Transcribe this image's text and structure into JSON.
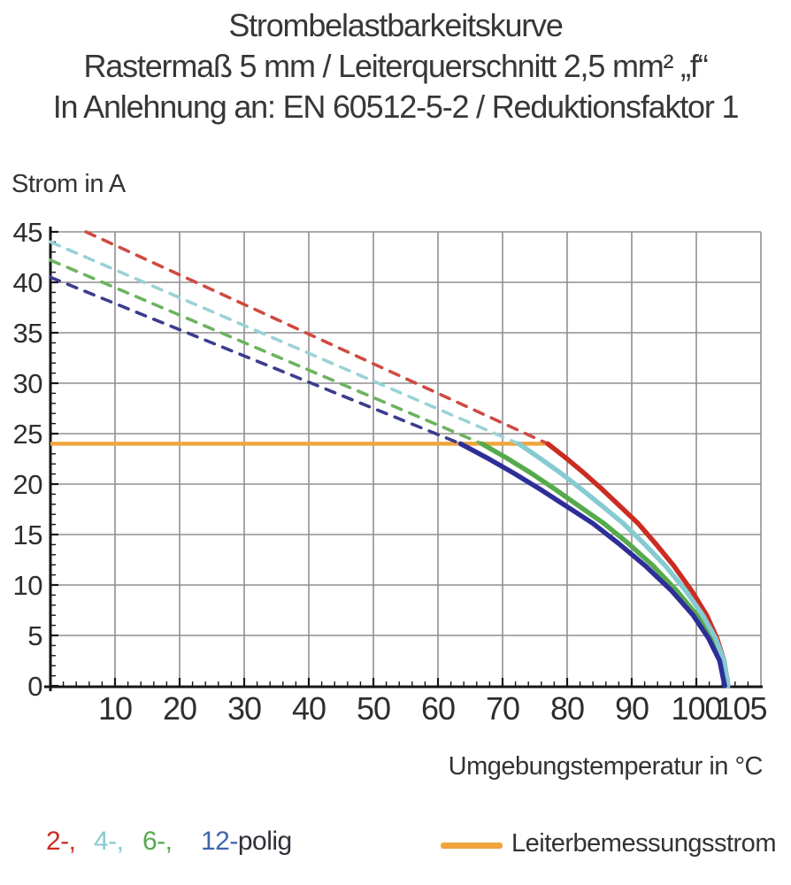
{
  "title": {
    "line1": "Strombelastbarkeitskurve",
    "line2": "Rastermaß 5 mm / Leiterquerschnitt 2,5 mm² „f“",
    "line3": "In Anlehnung an: EN 60512-5-2 / Reduktionsfaktor 1"
  },
  "chart_data": {
    "type": "line",
    "title": "Strombelastbarkeitskurve",
    "xlabel": "Umgebungstemperatur in °C",
    "ylabel": "Strom in A",
    "xlim": [
      0,
      110
    ],
    "ylim": [
      0,
      45
    ],
    "grid": true,
    "x_ticks_labeled": [
      10,
      20,
      30,
      40,
      50,
      60,
      70,
      80,
      90,
      100,
      105
    ],
    "y_ticks_labeled": [
      0,
      5,
      10,
      15,
      20,
      25,
      30,
      35,
      40,
      45
    ],
    "x_minor_tick_step": 2,
    "y_minor_tick_step": 1,
    "series": [
      {
        "name": "2-polig",
        "color": "#cb2c21",
        "dash_color": "#cf4b42",
        "dashed_segment": [
          [
            5.5,
            45
          ],
          [
            77,
            24
          ]
        ],
        "solid_curve": [
          [
            77,
            24
          ],
          [
            79.8,
            22.6
          ],
          [
            82.6,
            21.1
          ],
          [
            85.4,
            19.5
          ],
          [
            88.2,
            17.8
          ],
          [
            91,
            16.1
          ],
          [
            93.7,
            14.1
          ],
          [
            96.5,
            11.9
          ],
          [
            99.3,
            9.4
          ],
          [
            101.6,
            7
          ],
          [
            103.2,
            4.7
          ],
          [
            104.3,
            2.5
          ],
          [
            104.9,
            0
          ]
        ]
      },
      {
        "name": "6-polig",
        "color": "#56aa4c",
        "dash_color": "#6db360",
        "dashed_segment": [
          [
            0,
            42.2
          ],
          [
            66.8,
            24
          ]
        ],
        "solid_curve": [
          [
            66.8,
            24
          ],
          [
            70.6,
            22.6
          ],
          [
            74.4,
            21.1
          ],
          [
            78.1,
            19.5
          ],
          [
            81.9,
            17.8
          ],
          [
            85.7,
            16.1
          ],
          [
            89.5,
            14.1
          ],
          [
            93.3,
            11.9
          ],
          [
            97,
            9.4
          ],
          [
            100.1,
            7
          ],
          [
            102.3,
            4.7
          ],
          [
            103.8,
            2.5
          ],
          [
            104.6,
            0
          ]
        ]
      },
      {
        "name": "4-polig",
        "color": "#85cbd1",
        "dash_color": "#9bd2d6",
        "dashed_segment": [
          [
            0,
            44
          ],
          [
            72.5,
            24
          ]
        ],
        "solid_curve": [
          [
            72.5,
            24
          ],
          [
            75.7,
            22.6
          ],
          [
            79,
            21.1
          ],
          [
            82.2,
            19.5
          ],
          [
            85.5,
            17.8
          ],
          [
            88.7,
            16.1
          ],
          [
            91.9,
            14.1
          ],
          [
            95.2,
            11.9
          ],
          [
            98.4,
            9.4
          ],
          [
            101,
            7
          ],
          [
            103,
            4.7
          ],
          [
            104.3,
            2.5
          ],
          [
            104.9,
            0
          ]
        ]
      },
      {
        "name": "12-polig",
        "color": "#2e2e99",
        "dash_color": "#3c3c8f",
        "dashed_segment": [
          [
            0,
            40.5
          ],
          [
            63.5,
            24
          ]
        ],
        "solid_curve": [
          [
            63.5,
            24
          ],
          [
            67.6,
            22.6
          ],
          [
            71.7,
            21.1
          ],
          [
            75.8,
            19.5
          ],
          [
            79.9,
            17.8
          ],
          [
            84,
            16.1
          ],
          [
            88,
            14.1
          ],
          [
            92.1,
            11.9
          ],
          [
            96.2,
            9.4
          ],
          [
            99.5,
            7
          ],
          [
            101.9,
            4.7
          ],
          [
            103.6,
            2.5
          ],
          [
            104.4,
            0
          ]
        ]
      }
    ],
    "reference_line": {
      "name": "Leiterbemessungsstrom",
      "color": "#f0a43c",
      "y": 24,
      "x_start": 0,
      "x_end": 77
    },
    "legend_position": "bottom"
  },
  "legend": {
    "pole_items": [
      {
        "label": "2-,",
        "color": "#cb2c21"
      },
      {
        "label": "4-,",
        "color": "#85cbd1"
      },
      {
        "label": "6-,",
        "color": "#56aa4c"
      },
      {
        "label": "12-",
        "color": "#3f66ad"
      }
    ],
    "pole_suffix": "polig",
    "reference_label": "Leiterbemessungsstrom"
  }
}
